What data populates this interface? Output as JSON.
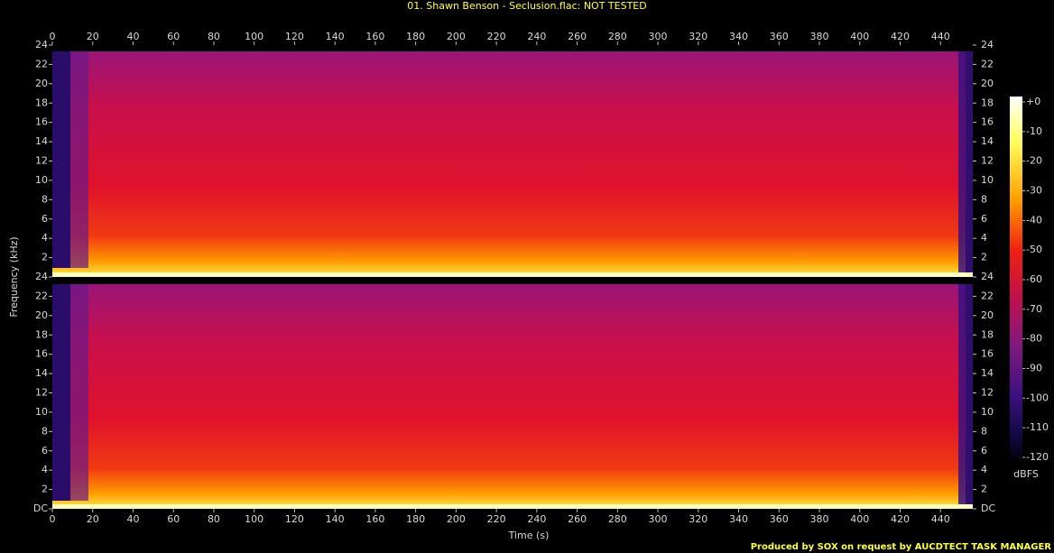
{
  "chart_data": {
    "type": "spectrogram",
    "title": "01. Shawn Benson - Seclusion.flac: NOT TESTED",
    "x_label": "Time (s)",
    "y_label": "Frequency (kHz)",
    "xlim": [
      0,
      456
    ],
    "xticks": [
      0,
      20,
      40,
      60,
      80,
      100,
      120,
      140,
      160,
      180,
      200,
      220,
      240,
      260,
      280,
      300,
      320,
      340,
      360,
      380,
      400,
      420,
      440
    ],
    "panels": [
      {
        "ylim": [
          0,
          24
        ],
        "yticks": [
          2,
          4,
          6,
          8,
          10,
          12,
          14,
          16,
          18,
          20,
          22,
          24
        ]
      },
      {
        "ylim": [
          0,
          24
        ],
        "yticks": [
          {
            "value": 0,
            "label": "DC"
          },
          2,
          4,
          6,
          8,
          10,
          12,
          14,
          16,
          18,
          20,
          22,
          24
        ]
      }
    ],
    "colorbar": {
      "label": "dBFS",
      "lim": [
        -120,
        0
      ],
      "ticks": [
        {
          "value": 0,
          "label": "+0"
        },
        -10,
        -20,
        -30,
        -40,
        -50,
        -60,
        -70,
        -80,
        -90,
        -100,
        -110,
        -120
      ]
    },
    "footer": "Produced by SOX on request by AUCDTECT TASK MANAGER"
  }
}
